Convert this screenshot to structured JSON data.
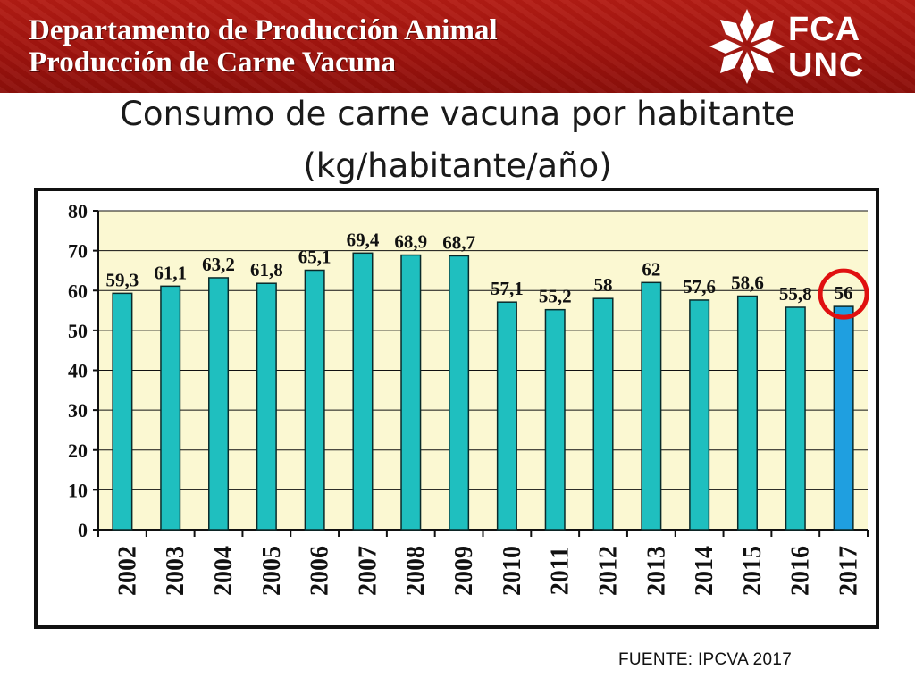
{
  "header": {
    "line1": "Departamento de Producción Animal",
    "line2": "Producción de Carne Vacuna",
    "logo_line1": "FCA",
    "logo_line2": "UNC",
    "background_color": "#a8160f"
  },
  "slide": {
    "title_line1": "Consumo de carne vacuna por habitante",
    "title_line2": "(kg/habitante/año)",
    "source": "FUENTE: IPCVA 2017"
  },
  "chart_data": {
    "type": "bar",
    "categories": [
      "2002",
      "2003",
      "2004",
      "2005",
      "2006",
      "2007",
      "2008",
      "2009",
      "2010",
      "2011",
      "2012",
      "2013",
      "2014",
      "2015",
      "2016",
      "2017"
    ],
    "values": [
      59.3,
      61.1,
      63.2,
      61.8,
      65.1,
      69.4,
      68.9,
      68.7,
      57.1,
      55.2,
      58,
      62,
      57.6,
      58.6,
      55.8,
      56
    ],
    "data_labels": [
      "59,3",
      "61,1",
      "63,2",
      "61,8",
      "65,1",
      "69,4",
      "68,9",
      "68,7",
      "57,1",
      "55,2",
      "58",
      "62",
      "57,6",
      "58,6",
      "55,8",
      "56"
    ],
    "title": "",
    "xlabel": "",
    "ylabel": "",
    "ylim": [
      0,
      80
    ],
    "yticks": [
      0,
      10,
      20,
      30,
      40,
      50,
      60,
      70,
      80
    ],
    "grid": true,
    "legend": "none",
    "bar_color": "#1fbfbf",
    "highlight_bar_color": "#1f9fe0",
    "highlight_category": "2017",
    "highlight_circle_color": "#e01010",
    "plot_background": "#fbf8d2"
  }
}
